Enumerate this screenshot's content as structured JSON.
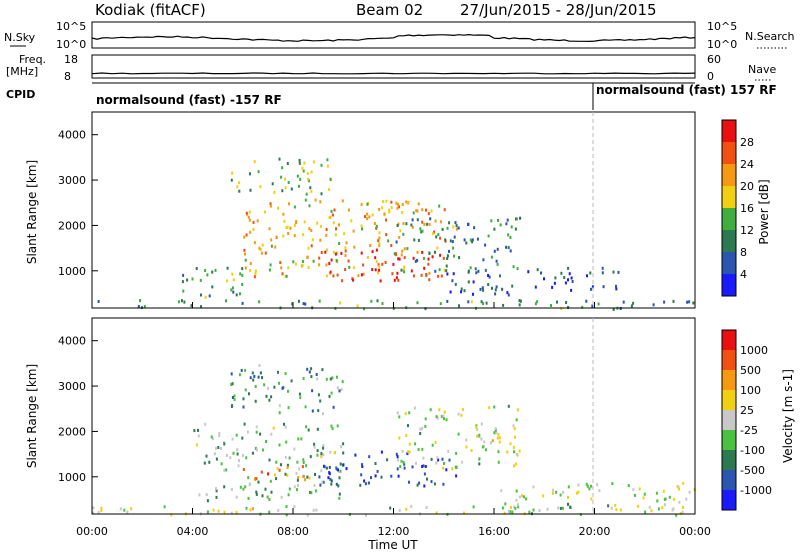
{
  "header": {
    "station": "Kodiak (fitACF)",
    "beam": "Beam 02",
    "date_range": "27/Jun/2015 - 28/Jun/2015"
  },
  "strips": {
    "nsky": {
      "label": "N.Sky",
      "tick_top": "10^5",
      "tick_bottom": "10^0",
      "right_label": "N.Search",
      "right_tick_top": "10^5",
      "right_tick_bottom": "10^0"
    },
    "freq": {
      "label_line1": "Freq.",
      "label_line2": "[MHz]",
      "tick_top": "18",
      "tick_bottom": "8",
      "right_label": "Nave",
      "right_tick_top": "60",
      "right_tick_bottom": "0"
    },
    "cpid": {
      "label": "CPID",
      "segments": [
        "normalsound (fast) -157 RF",
        "normalsound (fast) 157 RF"
      ]
    }
  },
  "chart_data": [
    {
      "type": "heatmap",
      "name": "power",
      "ylabel": "Slant Range [km]",
      "y_ticks": [
        "1000",
        "2000",
        "3000",
        "4000"
      ],
      "colorbar_label": "Power [dB]",
      "colorbar_ticks": [
        "4",
        "8",
        "12",
        "16",
        "20",
        "24",
        "28"
      ],
      "colorbar_colors": [
        "#1a1aff",
        "#2a55b0",
        "#2c7a50",
        "#3fae3f",
        "#f0d010",
        "#f59a10",
        "#f05010",
        "#e81010"
      ],
      "scatter_regions": [
        {
          "t0": 5.5,
          "t1": 9.5,
          "r0": 2700,
          "r1": 3500,
          "v": 0.45
        },
        {
          "t0": 6.0,
          "t1": 14.5,
          "r0": 900,
          "r1": 2600,
          "v": 0.65
        },
        {
          "t0": 9.0,
          "t1": 14.0,
          "r0": 800,
          "r1": 1500,
          "v": 0.9
        },
        {
          "t0": 3.5,
          "t1": 6.0,
          "r0": 400,
          "r1": 1200,
          "v": 0.4
        },
        {
          "t0": 12.0,
          "t1": 17.0,
          "r0": 1000,
          "r1": 2200,
          "v": 0.3
        },
        {
          "t0": 14.0,
          "t1": 21.0,
          "r0": 500,
          "r1": 1100,
          "v": 0.2
        },
        {
          "t0": 0.0,
          "t1": 24.0,
          "r0": 180,
          "r1": 380,
          "v": 0.35
        }
      ]
    },
    {
      "type": "heatmap",
      "name": "velocity",
      "ylabel": "Slant Range [km]",
      "y_ticks": [
        "1000",
        "2000",
        "3000",
        "4000"
      ],
      "colorbar_label": "Velocity [m s-1]",
      "colorbar_ticks": [
        "1000",
        "500",
        "100",
        "25",
        "-25",
        "-100",
        "-500",
        "-1000"
      ],
      "colorbar_colors": [
        "#1a1aff",
        "#2a55b0",
        "#2c7a50",
        "#4cc040",
        "#c8c8c8",
        "#f0d010",
        "#f59a10",
        "#f05010",
        "#e81010"
      ],
      "x_ticks": [
        "00:00",
        "04:00",
        "08:00",
        "12:00",
        "16:00",
        "20:00",
        "00:00"
      ],
      "xlabel": "Time UT",
      "scatter_regions": [
        {
          "t0": 5.5,
          "t1": 10.0,
          "r0": 2400,
          "r1": 3500,
          "v": 0.3
        },
        {
          "t0": 4.0,
          "t1": 10.0,
          "r0": 500,
          "r1": 2200,
          "v": 0.4
        },
        {
          "t0": 9.0,
          "t1": 14.5,
          "r0": 800,
          "r1": 1600,
          "v": 0.15
        },
        {
          "t0": 6.0,
          "t1": 8.5,
          "r0": 900,
          "r1": 1300,
          "v": 0.75
        },
        {
          "t0": 12.0,
          "t1": 17.0,
          "r0": 1200,
          "r1": 2600,
          "v": 0.5
        },
        {
          "t0": 16.0,
          "t1": 24.0,
          "r0": 300,
          "r1": 900,
          "v": 0.5
        },
        {
          "t0": 0.0,
          "t1": 24.0,
          "r0": 180,
          "r1": 380,
          "v": 0.5
        }
      ]
    }
  ]
}
